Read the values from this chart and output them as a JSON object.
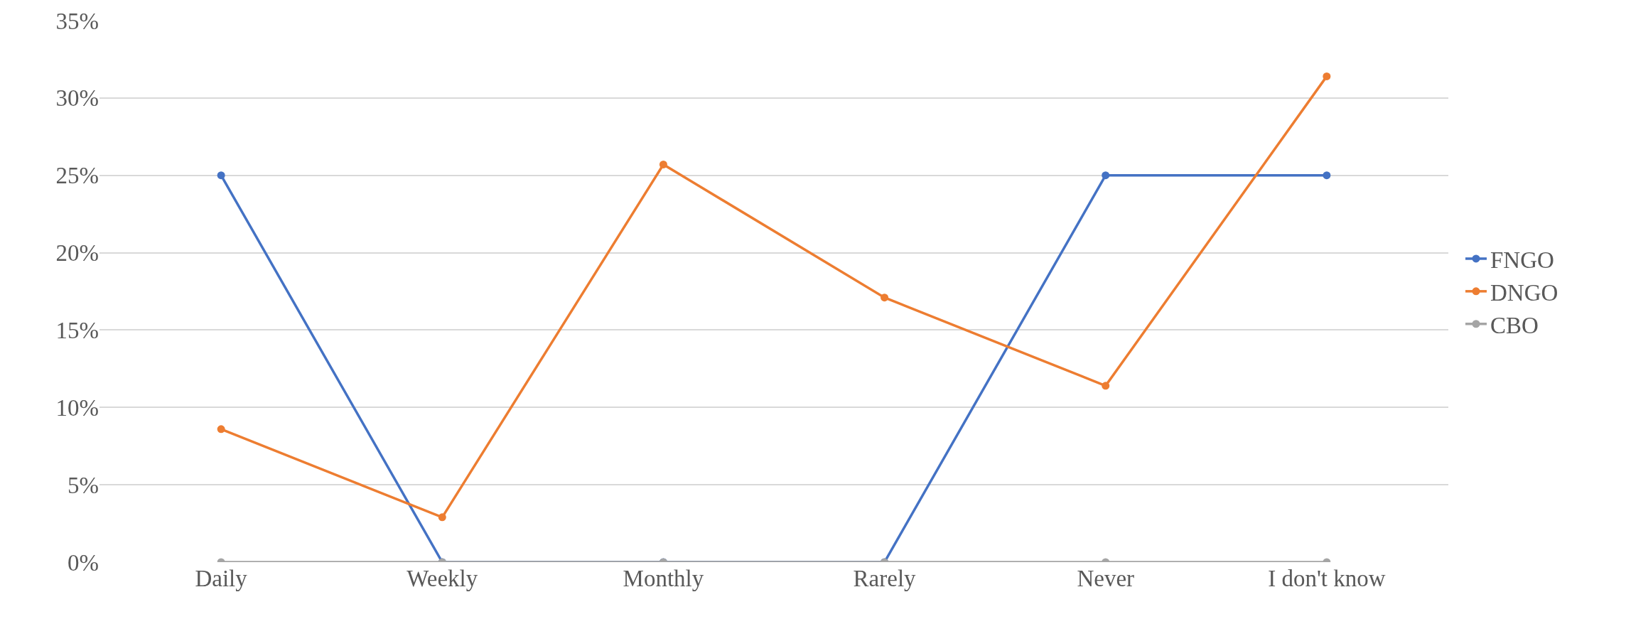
{
  "chart_data": {
    "type": "line",
    "categories": [
      "Daily",
      "Weekly",
      "Monthly",
      "Rarely",
      "Never",
      "I don't know"
    ],
    "series": [
      {
        "name": "FNGO",
        "color": "#4472c4",
        "values": [
          25,
          0,
          0,
          0,
          25,
          25
        ]
      },
      {
        "name": "DNGO",
        "color": "#ed7d31",
        "values": [
          8.6,
          2.9,
          25.7,
          17.1,
          11.4,
          31.4
        ]
      },
      {
        "name": "CBO",
        "color": "#a5a5a5",
        "values": [
          0,
          0,
          0,
          0,
          0,
          0
        ]
      }
    ],
    "ylim": [
      0,
      35
    ],
    "yticks": [
      {
        "value": 0,
        "label": "0%"
      },
      {
        "value": 5,
        "label": "5%"
      },
      {
        "value": 10,
        "label": "10%"
      },
      {
        "value": 15,
        "label": "15%"
      },
      {
        "value": 20,
        "label": "20%"
      },
      {
        "value": 25,
        "label": "25%"
      },
      {
        "value": 30,
        "label": "30%"
      },
      {
        "value": 35,
        "label": "35%"
      }
    ],
    "grid": "y",
    "legend": "right",
    "marker": "circle",
    "line_style": "solid"
  }
}
